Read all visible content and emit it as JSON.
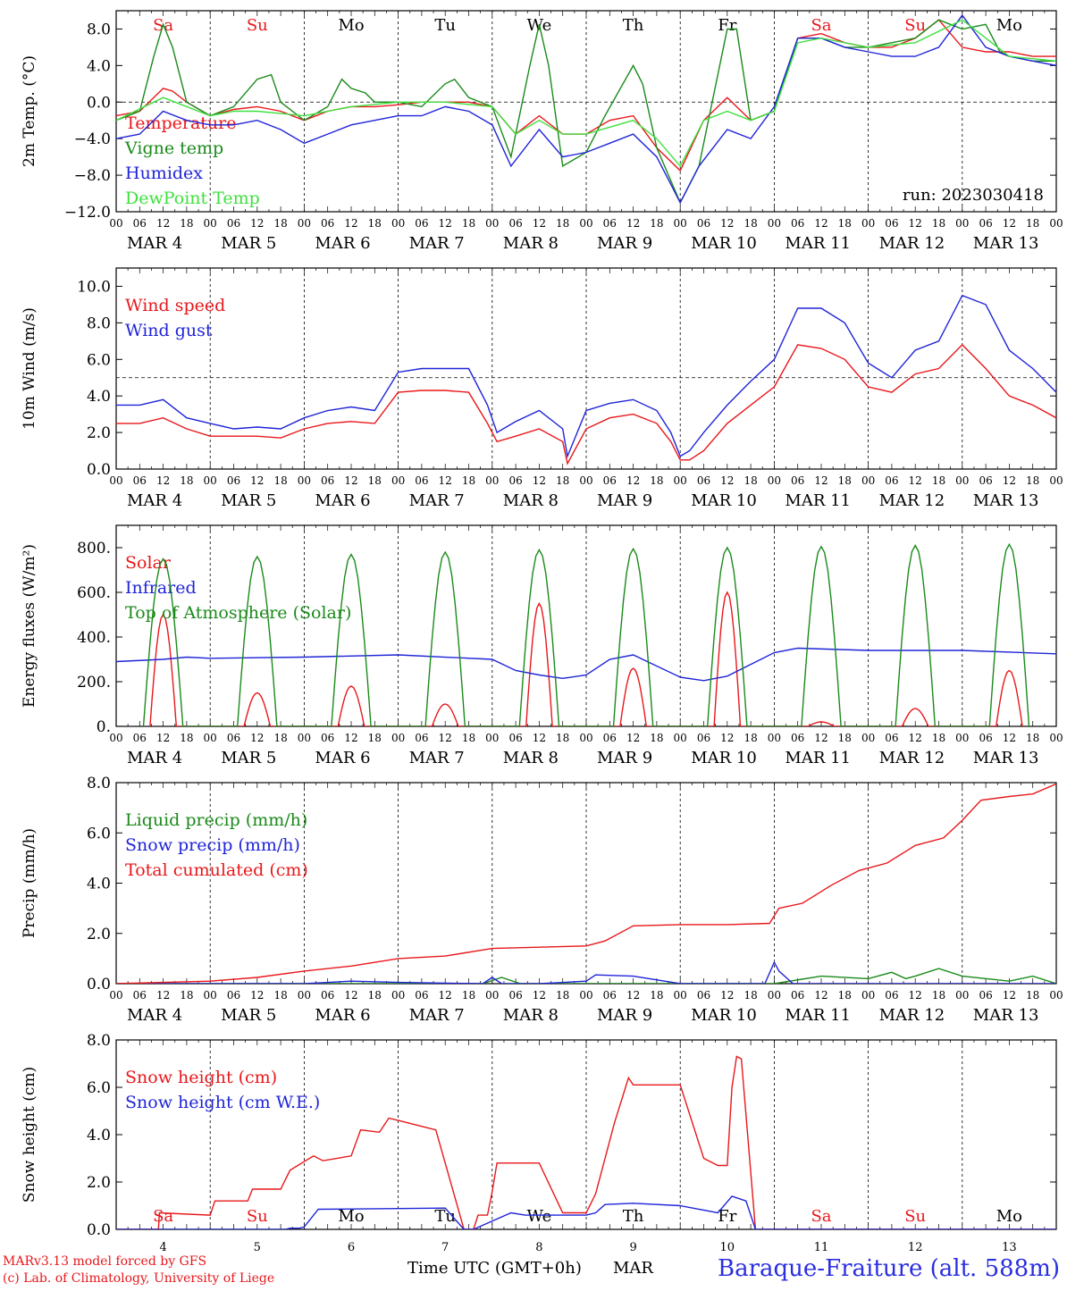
{
  "colors": {
    "red": "#e8171b",
    "green": "#1a8a1a",
    "blue": "#1f24d8",
    "lightgreen": "#3ee03e",
    "axis": "#000000",
    "title_blue": "#2a2ee0"
  },
  "footer": {
    "model_line": "MARv3.13 model forced by GFS",
    "lab_line": "(c) Lab. of Climatology, University of Liege",
    "time_label": "Time UTC (GMT+0h)",
    "month_label": "MAR",
    "station": "Baraque-Fraiture (alt. 588m)"
  },
  "hour_ticks": [
    "00",
    "06",
    "12",
    "18"
  ],
  "final_tick": "00",
  "day_labels": [
    "MAR  4",
    "MAR  5",
    "MAR  6",
    "MAR  7",
    "MAR  8",
    "MAR  9",
    "MAR 10",
    "MAR 11",
    "MAR 12",
    "MAR 13"
  ],
  "bottom_day_numbers": [
    "4",
    "5",
    "6",
    "7",
    "8",
    "9",
    "10",
    "11",
    "12",
    "13"
  ],
  "weekdays": [
    {
      "label": "Sa",
      "weekend": true
    },
    {
      "label": "Su",
      "weekend": true
    },
    {
      "label": "Mo",
      "weekend": false
    },
    {
      "label": "Tu",
      "weekend": false
    },
    {
      "label": "We",
      "weekend": false
    },
    {
      "label": "Th",
      "weekend": false
    },
    {
      "label": "Fr",
      "weekend": false
    },
    {
      "label": "Sa",
      "weekend": true
    },
    {
      "label": "Su",
      "weekend": true
    },
    {
      "label": "Mo",
      "weekend": false
    }
  ],
  "chart_data": [
    {
      "type": "line",
      "ylabel": "2m Temp. (°C)",
      "ylim": [
        -12,
        10
      ],
      "yticks": [
        -12,
        -8,
        -4,
        0,
        4,
        8
      ],
      "ytick_labels": [
        "−12.0",
        "−8.0",
        "−4.0",
        "0.0",
        "4.0",
        "8.0"
      ],
      "ref_line": 0,
      "run_label": "run: 2023030418",
      "x_unit": "days since MAR 4 00 UTC",
      "xlim": [
        0,
        10
      ],
      "series": [
        {
          "name": "Temperature",
          "color": "red",
          "x": [
            0,
            0.25,
            0.5,
            0.6,
            0.75,
            1,
            1.25,
            1.5,
            1.75,
            2,
            2.25,
            2.5,
            2.75,
            3,
            3.25,
            3.5,
            3.75,
            4,
            4.25,
            4.5,
            4.75,
            5,
            5.25,
            5.5,
            5.75,
            6,
            6.25,
            6.5,
            6.75,
            7,
            7.25,
            7.5,
            7.75,
            8,
            8.25,
            8.5,
            8.75,
            9,
            9.25,
            9.5,
            9.75,
            10
          ],
          "y": [
            -1.5,
            -1,
            1.5,
            1.2,
            0,
            -1.5,
            -0.8,
            -0.5,
            -1,
            -2,
            -1,
            -0.5,
            -0.5,
            -0.3,
            0,
            0,
            0,
            -0.5,
            -3.5,
            -1.5,
            -3.5,
            -3.5,
            -2,
            -1.5,
            -5,
            -7.5,
            -2,
            0.5,
            -2,
            -1,
            7,
            7.5,
            6.5,
            6,
            6,
            7,
            9,
            6,
            5.5,
            5.5,
            5,
            5
          ]
        },
        {
          "name": "Vigne temp",
          "color": "green",
          "x": [
            0,
            0.25,
            0.4,
            0.5,
            0.6,
            0.75,
            1,
            1.25,
            1.5,
            1.65,
            1.75,
            2,
            2.25,
            2.4,
            2.5,
            2.65,
            2.75,
            3,
            3.25,
            3.5,
            3.6,
            3.75,
            4,
            4.2,
            4.4,
            4.5,
            4.6,
            4.75,
            5,
            5.2,
            5.5,
            5.6,
            5.75,
            6,
            6.2,
            6.5,
            6.6,
            6.75,
            7,
            7.25,
            7.5,
            7.75,
            8,
            8.25,
            8.5,
            8.75,
            9,
            9.25,
            9.4,
            9.5,
            9.75,
            10
          ],
          "y": [
            -2,
            -1,
            5,
            8.5,
            6,
            0,
            -1.5,
            -0.5,
            2.5,
            3,
            0,
            -2,
            -0.5,
            2.5,
            1.5,
            1,
            0,
            0,
            -0.5,
            2,
            2.5,
            0.5,
            -0.5,
            -6,
            4,
            8.5,
            4,
            -7,
            -5.5,
            -1.5,
            4,
            2,
            -5,
            -11,
            -7,
            8,
            8,
            -2,
            -1,
            7,
            7,
            6,
            6,
            6.5,
            7,
            9,
            8,
            8.5,
            5.5,
            5,
            4.5,
            4.5
          ]
        },
        {
          "name": "Humidex",
          "color": "blue",
          "x": [
            0,
            0.25,
            0.5,
            0.75,
            1,
            1.25,
            1.5,
            1.75,
            2,
            2.25,
            2.5,
            2.75,
            3,
            3.25,
            3.5,
            3.75,
            4,
            4.2,
            4.5,
            4.75,
            5,
            5.25,
            5.5,
            5.75,
            6,
            6.2,
            6.5,
            6.75,
            7,
            7.25,
            7.5,
            7.75,
            8,
            8.25,
            8.5,
            8.75,
            9,
            9.25,
            9.5,
            9.75,
            10
          ],
          "y": [
            -4,
            -3.5,
            -1,
            -2,
            -2.5,
            -2.5,
            -2,
            -3,
            -4.5,
            -3.5,
            -2.5,
            -2,
            -1.5,
            -1.5,
            -0.5,
            -1,
            -2.5,
            -7,
            -3,
            -6,
            -5.5,
            -4.5,
            -3.5,
            -6,
            -11,
            -7,
            -3,
            -4,
            -0.5,
            7,
            7,
            6,
            5.5,
            5,
            5,
            6,
            9.5,
            6,
            5,
            4.5,
            4
          ]
        },
        {
          "name": "DewPoint Temp",
          "color": "lightgreen",
          "x": [
            0,
            0.5,
            1,
            1.25,
            1.5,
            2,
            2.5,
            3,
            3.5,
            4,
            4.25,
            4.5,
            4.75,
            5,
            5.5,
            5.75,
            6,
            6.25,
            6.5,
            6.75,
            7,
            7.25,
            7.5,
            8,
            8.5,
            9,
            9.5,
            10
          ],
          "y": [
            -2,
            0.5,
            -1.5,
            -1,
            -1,
            -1.5,
            -0.5,
            0,
            0,
            -0.5,
            -3.5,
            -2,
            -3.5,
            -3.5,
            -2,
            -4,
            -7,
            -2,
            -1,
            -2,
            -1,
            6.5,
            7,
            6,
            6.5,
            9,
            5,
            4.5
          ]
        }
      ]
    },
    {
      "type": "line",
      "ylabel": "10m Wind (m/s)",
      "ylim": [
        0,
        11
      ],
      "yticks": [
        0,
        2,
        4,
        6,
        8,
        10
      ],
      "ytick_labels": [
        "0.0",
        "2.0",
        "4.0",
        "6.0",
        "8.0",
        "10.0"
      ],
      "ref_line": 5,
      "x_unit": "days since MAR 4 00 UTC",
      "xlim": [
        0,
        10
      ],
      "series": [
        {
          "name": "Wind speed",
          "color": "red",
          "x": [
            0,
            0.25,
            0.5,
            0.75,
            1,
            1.25,
            1.5,
            1.75,
            2,
            2.25,
            2.5,
            2.75,
            3,
            3.25,
            3.5,
            3.75,
            3.95,
            4.05,
            4.25,
            4.5,
            4.75,
            4.8,
            5,
            5.25,
            5.5,
            5.75,
            5.9,
            6,
            6.1,
            6.25,
            6.5,
            6.75,
            7,
            7.25,
            7.5,
            7.75,
            8,
            8.25,
            8.5,
            8.75,
            9,
            9.25,
            9.5,
            9.75,
            10
          ],
          "y": [
            2.5,
            2.5,
            2.8,
            2.2,
            1.8,
            1.8,
            1.8,
            1.7,
            2.2,
            2.5,
            2.6,
            2.5,
            4.2,
            4.3,
            4.3,
            4.2,
            2.5,
            1.5,
            1.8,
            2.2,
            1.5,
            0.3,
            2.2,
            2.8,
            3,
            2.5,
            1.5,
            0.5,
            0.5,
            1,
            2.5,
            3.5,
            4.5,
            6.8,
            6.6,
            6,
            4.5,
            4.2,
            5.2,
            5.5,
            6.8,
            5.5,
            4,
            3.5,
            2.8
          ]
        },
        {
          "name": "Wind gust",
          "color": "blue",
          "x": [
            0,
            0.25,
            0.5,
            0.75,
            1,
            1.25,
            1.5,
            1.75,
            2,
            2.25,
            2.5,
            2.75,
            3,
            3.25,
            3.5,
            3.75,
            3.95,
            4.05,
            4.25,
            4.5,
            4.75,
            4.8,
            5,
            5.25,
            5.5,
            5.75,
            5.9,
            6,
            6.1,
            6.25,
            6.5,
            6.75,
            7,
            7.25,
            7.5,
            7.75,
            8,
            8.25,
            8.5,
            8.75,
            9,
            9.25,
            9.5,
            9.75,
            10
          ],
          "y": [
            3.5,
            3.5,
            3.8,
            2.8,
            2.5,
            2.2,
            2.3,
            2.2,
            2.8,
            3.2,
            3.4,
            3.2,
            5.3,
            5.5,
            5.5,
            5.5,
            3.5,
            2,
            2.6,
            3.2,
            2.2,
            0.7,
            3.2,
            3.6,
            3.8,
            3.2,
            2,
            0.7,
            1,
            2,
            3.5,
            4.8,
            6,
            8.8,
            8.8,
            8,
            5.8,
            5,
            6.5,
            7,
            9.5,
            9,
            6.5,
            5.5,
            4.2
          ]
        }
      ]
    },
    {
      "type": "line",
      "ylabel": "Energy fluxes (W/m²)",
      "ylim": [
        0,
        900
      ],
      "yticks": [
        0,
        200,
        400,
        600,
        800
      ],
      "ytick_labels": [
        "0.",
        "200.",
        "400.",
        "600.",
        "800."
      ],
      "x_unit": "days since MAR 4 00 UTC",
      "xlim": [
        0,
        10
      ],
      "series": [
        {
          "name": "Solar",
          "color": "red",
          "day_peaks": [
            500,
            150,
            180,
            100,
            550,
            260,
            600,
            20,
            80,
            250
          ]
        },
        {
          "name": "Infrared",
          "color": "blue",
          "x": [
            0,
            0.5,
            0.75,
            1,
            2,
            3,
            4,
            4.25,
            4.5,
            4.75,
            5,
            5.25,
            5.5,
            6,
            6.25,
            6.5,
            7,
            7.25,
            8,
            9,
            10
          ],
          "y": [
            290,
            300,
            310,
            305,
            310,
            320,
            300,
            250,
            230,
            215,
            230,
            300,
            320,
            220,
            205,
            225,
            330,
            350,
            340,
            340,
            325
          ]
        },
        {
          "name": "Top of Atmosphere (Solar)",
          "color": "green",
          "day_peaks": [
            750,
            760,
            770,
            780,
            790,
            795,
            800,
            805,
            810,
            815
          ]
        }
      ]
    },
    {
      "type": "line",
      "ylabel": "Precip (mm/h)",
      "ylim": [
        0,
        8
      ],
      "yticks": [
        0,
        2,
        4,
        6,
        8
      ],
      "ytick_labels": [
        "0.0",
        "2.0",
        "4.0",
        "6.0",
        "8.0"
      ],
      "x_unit": "days since MAR 4 00 UTC",
      "xlim": [
        0,
        10
      ],
      "series": [
        {
          "name": "Liquid precip (mm/h)",
          "color": "green",
          "x": [
            0,
            3.9,
            4.1,
            4.3,
            7,
            7.5,
            8,
            8.25,
            8.4,
            8.5,
            8.75,
            9,
            9.5,
            9.75,
            10
          ],
          "y": [
            0,
            0,
            0.25,
            0,
            0,
            0.3,
            0.2,
            0.45,
            0.2,
            0.3,
            0.6,
            0.3,
            0.1,
            0.3,
            0
          ]
        },
        {
          "name": "Snow precip (mm/h)",
          "color": "blue",
          "x": [
            0,
            2,
            2.5,
            3,
            3.9,
            4,
            4.1,
            4.5,
            5,
            5.1,
            5.5,
            6,
            6.9,
            7,
            7.05,
            7.2,
            10
          ],
          "y": [
            0,
            0,
            0.1,
            0.05,
            0,
            0.25,
            0,
            0,
            0.1,
            0.35,
            0.3,
            0,
            0,
            0.85,
            0.5,
            0,
            0
          ]
        },
        {
          "name": "Total cumulated (cm)",
          "color": "red",
          "x": [
            0,
            0.5,
            1,
            1.5,
            2,
            2.5,
            3,
            3.5,
            4,
            4.5,
            5,
            5.2,
            5.5,
            6,
            6.5,
            6.95,
            7.05,
            7.3,
            7.6,
            7.9,
            8.2,
            8.5,
            8.8,
            9,
            9.2,
            9.5,
            9.75,
            10
          ],
          "y": [
            0,
            0.05,
            0.1,
            0.25,
            0.5,
            0.7,
            1.0,
            1.1,
            1.4,
            1.45,
            1.5,
            1.7,
            2.3,
            2.35,
            2.35,
            2.4,
            3.0,
            3.2,
            3.9,
            4.5,
            4.8,
            5.5,
            5.8,
            6.5,
            7.3,
            7.45,
            7.55,
            7.95
          ]
        }
      ]
    },
    {
      "type": "line",
      "ylabel": "Snow height (cm)",
      "ylim": [
        0,
        8
      ],
      "yticks": [
        0,
        2,
        4,
        6,
        8
      ],
      "ytick_labels": [
        "0.0",
        "2.0",
        "4.0",
        "6.0",
        "8.0"
      ],
      "x_unit": "days since MAR 4 00 UTC",
      "xlim": [
        0,
        10
      ],
      "series": [
        {
          "name": "Snow height (cm)",
          "color": "red",
          "x": [
            0,
            0.45,
            0.46,
            1,
            1.05,
            1.4,
            1.45,
            1.75,
            1.85,
            2.1,
            2.2,
            2.5,
            2.6,
            2.8,
            2.9,
            3,
            3.4,
            3.7,
            3.8,
            3.85,
            3.95,
            4,
            4.05,
            4.5,
            4.75,
            5,
            5.1,
            5.3,
            5.45,
            5.5,
            6,
            6.25,
            6.4,
            6.5,
            6.55,
            6.6,
            6.65,
            6.8,
            10
          ],
          "y": [
            0,
            0,
            0.7,
            0.6,
            1.2,
            1.2,
            1.7,
            1.7,
            2.5,
            3.1,
            2.9,
            3.1,
            4.2,
            4.1,
            4.7,
            4.6,
            4.2,
            0,
            0,
            0.6,
            0.6,
            1.6,
            2.8,
            2.8,
            0.7,
            0.7,
            1.5,
            4.5,
            6.4,
            6.1,
            6.1,
            3,
            2.7,
            2.7,
            6,
            7.3,
            7.2,
            0,
            0
          ]
        },
        {
          "name": "Snow height (cm W.E.)",
          "color": "blue",
          "x": [
            0,
            1.8,
            1.85,
            1.95,
            2,
            2.15,
            3.5,
            3.7,
            3.8,
            4.2,
            4.35,
            4.5,
            5,
            5.1,
            5.2,
            5.5,
            6,
            6.4,
            6.55,
            6.7,
            6.8,
            10
          ],
          "y": [
            0,
            0,
            0.05,
            0.05,
            0.1,
            0.85,
            0.9,
            0,
            0,
            0.7,
            0.6,
            0.6,
            0.6,
            0.7,
            1.05,
            1.1,
            1.0,
            0.7,
            1.4,
            1.2,
            0,
            0
          ]
        }
      ]
    }
  ]
}
